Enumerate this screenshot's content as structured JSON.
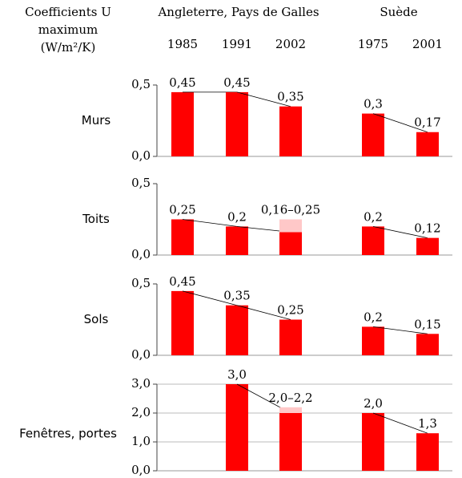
{
  "header": {
    "title_lines": [
      "Coefficients U",
      "maximum",
      "(W/m²/K)"
    ],
    "groups": [
      {
        "name": "Angleterre, Pays de Galles",
        "categories": [
          "1985",
          "1991",
          "2002"
        ]
      },
      {
        "name": "Suède",
        "categories": [
          "1975",
          "2001"
        ]
      }
    ]
  },
  "chart_data": [
    {
      "type": "bar",
      "title": "Murs",
      "color": "#ff0000",
      "values": [
        0.45,
        0.45,
        0.35,
        0.3,
        0.17
      ],
      "value_labels": [
        "0,45",
        "0,45",
        "0,35",
        "0,3",
        "0,17"
      ],
      "ylim": [
        0,
        0.5
      ],
      "yticks": [
        {
          "value": 0,
          "label": "0,0"
        },
        {
          "value": 0.5,
          "label": "0,5"
        }
      ],
      "grid": false
    },
    {
      "type": "bar",
      "title": "Toits",
      "color": "#ff0000",
      "range_color": "#ffc8c8",
      "values": [
        0.25,
        0.2,
        0.16,
        0.2,
        0.12
      ],
      "upper": [
        null,
        null,
        0.25,
        null,
        null
      ],
      "value_labels": [
        "0,25",
        "0,2",
        "0,16–0,25",
        "0,2",
        "0,12"
      ],
      "ylim": [
        0,
        0.5
      ],
      "yticks": [
        {
          "value": 0,
          "label": "0,0"
        },
        {
          "value": 0.5,
          "label": "0,5"
        }
      ],
      "grid": false
    },
    {
      "type": "bar",
      "title": "Sols",
      "color": "#ff0000",
      "values": [
        0.45,
        0.35,
        0.25,
        0.2,
        0.15
      ],
      "value_labels": [
        "0,45",
        "0,35",
        "0,25",
        "0,2",
        "0,15"
      ],
      "ylim": [
        0,
        0.5
      ],
      "yticks": [
        {
          "value": 0,
          "label": "0,0"
        },
        {
          "value": 0.5,
          "label": "0,5"
        }
      ],
      "grid": false
    },
    {
      "type": "bar",
      "title": "Fenêtres, portes",
      "color": "#ff0000",
      "range_color": "#ffc8c8",
      "values": [
        null,
        3.0,
        2.0,
        2.0,
        1.3
      ],
      "upper": [
        null,
        null,
        2.2,
        null,
        null
      ],
      "value_labels": [
        null,
        "3,0",
        "2,0–2,2",
        "2,0",
        "1,3"
      ],
      "ylim": [
        0,
        3
      ],
      "yticks": [
        {
          "value": 0,
          "label": "0,0"
        },
        {
          "value": 1,
          "label": "1,0"
        },
        {
          "value": 2,
          "label": "2,0"
        },
        {
          "value": 3,
          "label": "3,0"
        }
      ],
      "grid": true
    }
  ]
}
